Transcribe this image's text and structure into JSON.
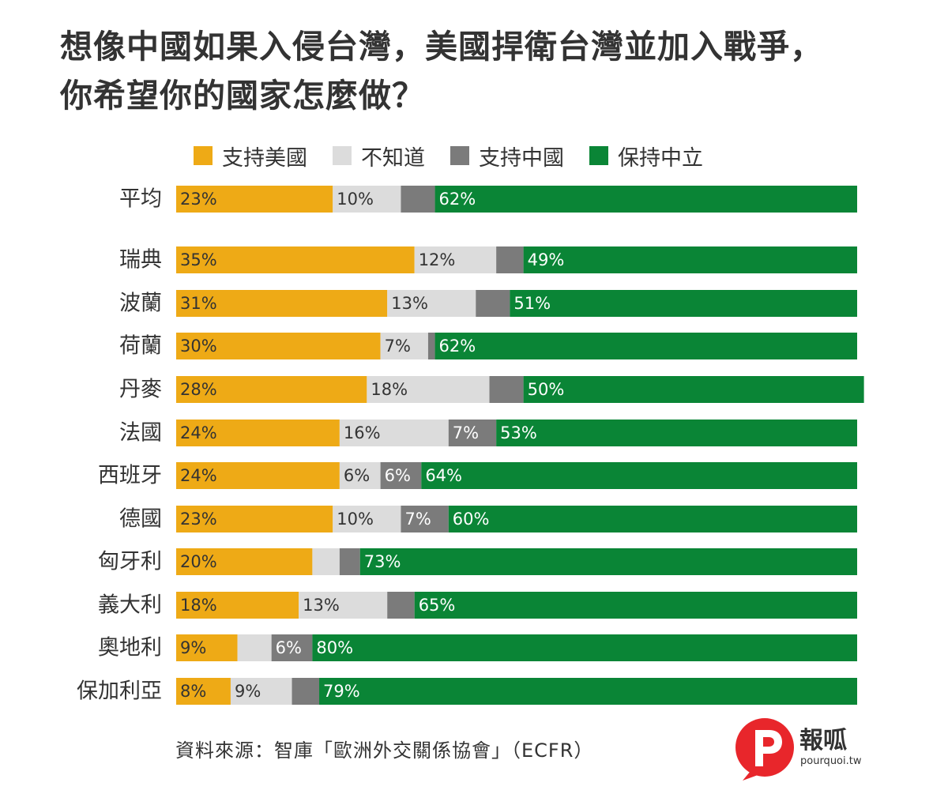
{
  "title": {
    "line1": "想像中國如果入侵台灣，美國捍衛台灣並加入戰爭，",
    "line2": "你希望你的國家怎麼做？"
  },
  "legend": [
    {
      "label": "支持美國",
      "color": "#EEAA16"
    },
    {
      "label": "不知道",
      "color": "#DCDCDC"
    },
    {
      "label": "支持中國",
      "color": "#7B7B7B"
    },
    {
      "label": "保持中立",
      "color": "#0A8536"
    }
  ],
  "chart_data": {
    "type": "bar",
    "orientation": "horizontal",
    "stacked": true,
    "xlim": [
      0,
      100
    ],
    "categories": [
      "平均",
      "瑞典",
      "波蘭",
      "荷蘭",
      "丹麥",
      "法國",
      "西班牙",
      "德國",
      "匈牙利",
      "義大利",
      "奧地利",
      "保加利亞"
    ],
    "series": [
      {
        "name": "支持美國",
        "color": "#EEAA16",
        "values": [
          23,
          35,
          31,
          30,
          28,
          24,
          24,
          23,
          20,
          18,
          9,
          8
        ],
        "labels": [
          "23%",
          "35%",
          "31%",
          "30%",
          "28%",
          "24%",
          "24%",
          "23%",
          "20%",
          "18%",
          "9%",
          "8%"
        ]
      },
      {
        "name": "不知道",
        "color": "#DCDCDC",
        "values": [
          10,
          12,
          13,
          7,
          18,
          16,
          6,
          10,
          4,
          13,
          5,
          9
        ],
        "labels": [
          "10%",
          "12%",
          "13%",
          "7%",
          "18%",
          "16%",
          "6%",
          "10%",
          "",
          "13%",
          "",
          "9%"
        ]
      },
      {
        "name": "支持中國",
        "color": "#7B7B7B",
        "values": [
          5,
          4,
          5,
          1,
          5,
          7,
          6,
          7,
          3,
          4,
          6,
          4
        ],
        "labels": [
          "",
          "",
          "",
          "",
          "",
          "7%",
          "6%",
          "7%",
          "",
          "",
          "6%",
          ""
        ]
      },
      {
        "name": "保持中立",
        "color": "#0A8536",
        "values": [
          62,
          49,
          51,
          62,
          50,
          53,
          64,
          60,
          73,
          65,
          80,
          79
        ],
        "labels": [
          "62%",
          "49%",
          "51%",
          "62%",
          "50%",
          "53%",
          "64%",
          "60%",
          "73%",
          "65%",
          "80%",
          "79%"
        ]
      }
    ]
  },
  "source": "資料來源：智庫「歐洲外交關係協會」（ECFR）",
  "logo": {
    "name": "報呱",
    "url": "pourquoi.tw"
  }
}
